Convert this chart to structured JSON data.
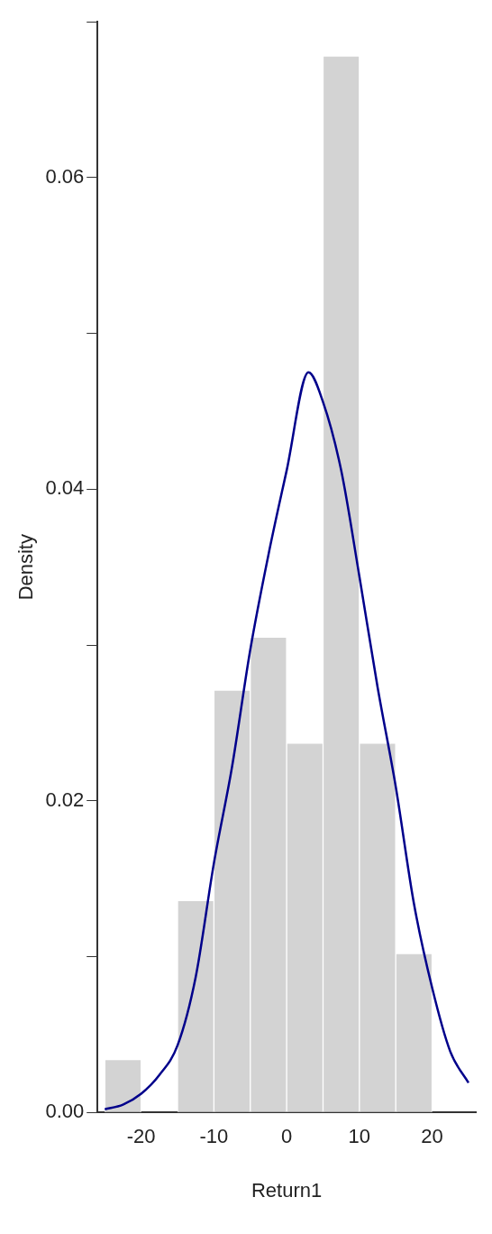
{
  "chart_data": {
    "type": "histogram",
    "xlabel": "Return1",
    "ylabel": "Density",
    "bins": [
      -25,
      -20,
      -15,
      -10,
      -5,
      0,
      5,
      10,
      15,
      20
    ],
    "values": [
      0.0034,
      0,
      0.0136,
      0.0271,
      0.0305,
      0.0237,
      0.0678,
      0.0237,
      0.0102
    ],
    "color": "#d3d3d3",
    "series": [
      {
        "type": "line",
        "color": "#00008b",
        "x": [
          -25,
          -22.5,
          -20,
          -17.5,
          -15,
          -12.5,
          -10,
          -7.5,
          -5,
          -2.5,
          0,
          3,
          5,
          7.5,
          10,
          12.5,
          15,
          17.5,
          20,
          22.5,
          25
        ],
        "values": [
          0.0002,
          0.0005,
          0.0012,
          0.0024,
          0.0043,
          0.0087,
          0.016,
          0.0222,
          0.0297,
          0.0358,
          0.0412,
          0.0475,
          0.0456,
          0.0412,
          0.0344,
          0.0273,
          0.0209,
          0.0134,
          0.008,
          0.0039,
          0.0019
        ]
      }
    ],
    "xlim": [
      -26,
      26
    ],
    "xticks": [
      -20,
      -10,
      0,
      10,
      20
    ],
    "ylim": [
      0,
      0.07
    ],
    "yticks": [
      {
        "value": 0,
        "label": "0.00"
      },
      {
        "value": 0.01,
        "label": null
      },
      {
        "value": 0.02,
        "label": "0.02"
      },
      {
        "value": 0.03,
        "label": null
      },
      {
        "value": 0.04,
        "label": "0.04"
      },
      {
        "value": 0.05,
        "label": null
      },
      {
        "value": 0.06,
        "label": "0.06"
      },
      {
        "value": 0.07,
        "label": null
      }
    ],
    "grid": false,
    "legend": false,
    "marker": "none"
  }
}
